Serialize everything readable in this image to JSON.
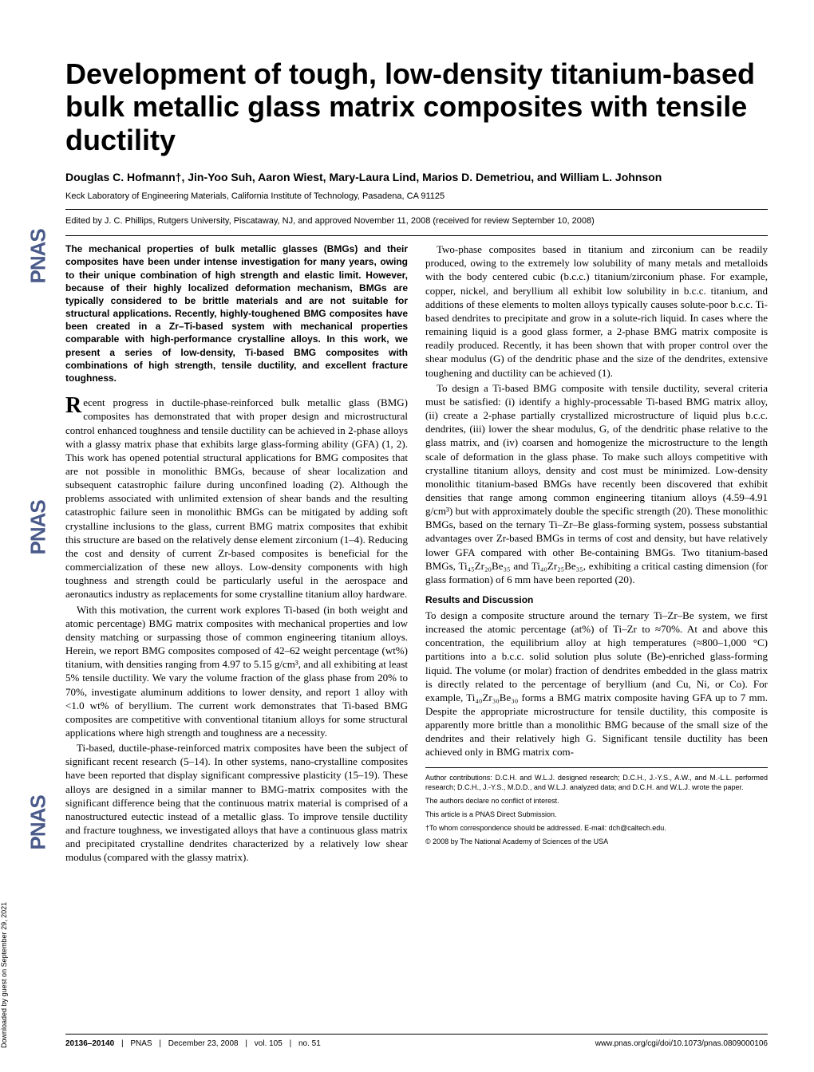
{
  "sidebar": {
    "download_text": "Downloaded by guest on September 29, 2021",
    "logo": "PNAS"
  },
  "title": "Development of tough, low-density titanium-based bulk metallic glass matrix composites with tensile ductility",
  "authors": "Douglas C. Hofmann†, Jin-Yoo Suh, Aaron Wiest, Mary-Laura Lind, Marios D. Demetriou, and William L. Johnson",
  "affiliation": "Keck Laboratory of Engineering Materials, California Institute of Technology, Pasadena, CA 91125",
  "edited": "Edited by J. C. Phillips, Rutgers University, Piscataway, NJ, and approved November 11, 2008 (received for review September 10, 2008)",
  "abstract": "The mechanical properties of bulk metallic glasses (BMGs) and their composites have been under intense investigation for many years, owing to their unique combination of high strength and elastic limit. However, because of their highly localized deformation mechanism, BMGs are typically considered to be brittle materials and are not suitable for structural applications. Recently, highly-toughened BMG composites have been created in a Zr–Ti-based system with mechanical properties comparable with high-performance crystalline alloys. In this work, we present a series of low-density, Ti-based BMG composites with combinations of high strength, tensile ductility, and excellent fracture toughness.",
  "body": {
    "p1": "Recent progress in ductile-phase-reinforced bulk metallic glass (BMG) composites has demonstrated that with proper design and microstructural control enhanced toughness and tensile ductility can be achieved in 2-phase alloys with a glassy matrix phase that exhibits large glass-forming ability (GFA) (1, 2). This work has opened potential structural applications for BMG composites that are not possible in monolithic BMGs, because of shear localization and subsequent catastrophic failure during unconfined loading (2). Although the problems associated with unlimited extension of shear bands and the resulting catastrophic failure seen in monolithic BMGs can be mitigated by adding soft crystalline inclusions to the glass, current BMG matrix composites that exhibit this structure are based on the relatively dense element zirconium (1–4). Reducing the cost and density of current Zr-based composites is beneficial for the commercialization of these new alloys. Low-density components with high toughness and strength could be particularly useful in the aerospace and aeronautics industry as replacements for some crystalline titanium alloy hardware.",
    "p2": "With this motivation, the current work explores Ti-based (in both weight and atomic percentage) BMG matrix composites with mechanical properties and low density matching or surpassing those of common engineering titanium alloys. Herein, we report BMG composites composed of 42–62 weight percentage (wt%) titanium, with densities ranging from 4.97 to 5.15 g/cm³, and all exhibiting at least 5% tensile ductility. We vary the volume fraction of the glass phase from 20% to 70%, investigate aluminum additions to lower density, and report 1 alloy with <1.0 wt% of beryllium. The current work demonstrates that Ti-based BMG composites are competitive with conventional titanium alloys for some structural applications where high strength and toughness are a necessity.",
    "p3": "Ti-based, ductile-phase-reinforced matrix composites have been the subject of significant recent research (5–14). In other systems, nano-crystalline composites have been reported that display significant compressive plasticity (15–19). These alloys are designed in a similar manner to BMG-matrix composites with the significant difference being that the continuous matrix material is comprised of a nanostructured eutectic instead of a metallic glass. To improve tensile ductility and fracture toughness, we investigated alloys that have a continuous glass matrix and precipitated crystalline dendrites characterized by a relatively low shear modulus (compared with the glassy matrix).",
    "p4": "Two-phase composites based in titanium and zirconium can be readily produced, owing to the extremely low solubility of many metals and metalloids with the body centered cubic (b.c.c.) titanium/zirconium phase. For example, copper, nickel, and beryllium all exhibit low solubility in b.c.c. titanium, and additions of these elements to molten alloys typically causes solute-poor b.c.c. Ti-based dendrites to precipitate and grow in a solute-rich liquid. In cases where the remaining liquid is a good glass former, a 2-phase BMG matrix composite is readily produced. Recently, it has been shown that with proper control over the shear modulus (G) of the dendritic phase and the size of the dendrites, extensive toughening and ductility can be achieved (1).",
    "p5": "To design a Ti-based BMG composite with tensile ductility, several criteria must be satisfied: (i) identify a highly-processable Ti-based BMG matrix alloy, (ii) create a 2-phase partially crystallized microstructure of liquid plus b.c.c. dendrites, (iii) lower the shear modulus, G, of the dendritic phase relative to the glass matrix, and (iv) coarsen and homogenize the microstructure to the length scale of deformation in the glass phase. To make such alloys competitive with crystalline titanium alloys, density and cost must be minimized. Low-density monolithic titanium-based BMGs have recently been discovered that exhibit densities that range among common engineering titanium alloys (4.59–4.91 g/cm³) but with approximately double the specific strength (20). These monolithic BMGs, based on the ternary Ti–Zr–Be glass-forming system, possess substantial advantages over Zr-based BMGs in terms of cost and density, but have relatively lower GFA compared with other Be-containing BMGs. Two titanium-based BMGs, Ti₄₅Zr₂₀Be₃₅ and Ti₄₀Zr₂₅Be₃₅, exhibiting a critical casting dimension (for glass formation) of 6 mm have been reported (20).",
    "section_head": "Results and Discussion",
    "p6": "To design a composite structure around the ternary Ti–Zr–Be system, we first increased the atomic percentage (at%) of Ti–Zr to ≈70%. At and above this concentration, the equilibrium alloy at high temperatures (≈800–1,000 °C) partitions into a b.c.c. solid solution plus solute (Be)-enriched glass-forming liquid. The volume (or molar) fraction of dendrites embedded in the glass matrix is directly related to the percentage of beryllium (and Cu, Ni, or Co). For example, Ti₄₀Zr₃₀Be₃₀ forms a BMG matrix composite having GFA up to 7 mm. Despite the appropriate microstructure for tensile ductility, this composite is apparently more brittle than a monolithic BMG because of the small size of the dendrites and their relatively high G. Significant tensile ductility has been achieved only in BMG matrix com-"
  },
  "footnotes": {
    "contrib": "Author contributions: D.C.H. and W.L.J. designed research; D.C.H., J.-Y.S., A.W., and M.-L.L. performed research; D.C.H., J.-Y.S., M.D.D., and W.L.J. analyzed data; and D.C.H. and W.L.J. wrote the paper.",
    "conflict": "The authors declare no conflict of interest.",
    "direct": "This article is a PNAS Direct Submission.",
    "corr": "†To whom correspondence should be addressed. E-mail: dch@caltech.edu.",
    "copyright": "© 2008 by The National Academy of Sciences of the USA"
  },
  "footer": {
    "left_pages": "20136–20140",
    "left_journal": "PNAS",
    "left_date": "December 23, 2008",
    "left_vol": "vol. 105",
    "left_no": "no. 51",
    "right": "www.pnas.org/cgi/doi/10.1073/pnas.0809000106"
  }
}
